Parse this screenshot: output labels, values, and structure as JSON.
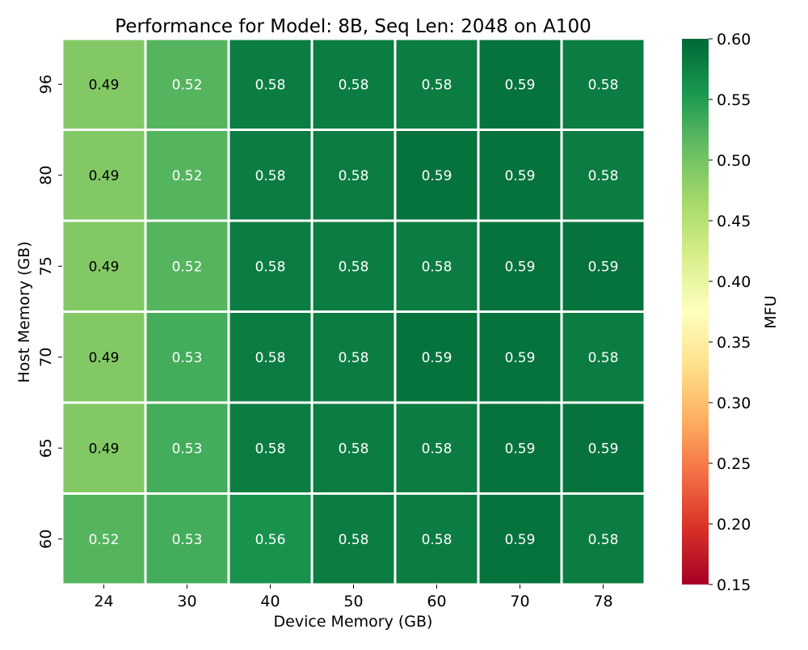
{
  "chart_data": {
    "type": "heatmap",
    "title": "Performance for Model: 8B, Seq Len: 2048 on A100",
    "xlabel": "Device Memory (GB)",
    "ylabel": "Host Memory (GB)",
    "x_categories": [
      "24",
      "30",
      "40",
      "50",
      "60",
      "70",
      "78"
    ],
    "y_categories": [
      "96",
      "80",
      "75",
      "70",
      "65",
      "60"
    ],
    "values": [
      [
        0.49,
        0.52,
        0.58,
        0.58,
        0.58,
        0.59,
        0.58
      ],
      [
        0.49,
        0.52,
        0.58,
        0.58,
        0.59,
        0.59,
        0.58
      ],
      [
        0.49,
        0.52,
        0.58,
        0.58,
        0.58,
        0.59,
        0.59
      ],
      [
        0.49,
        0.53,
        0.58,
        0.58,
        0.59,
        0.59,
        0.58
      ],
      [
        0.49,
        0.53,
        0.58,
        0.58,
        0.58,
        0.59,
        0.59
      ],
      [
        0.52,
        0.53,
        0.56,
        0.58,
        0.58,
        0.59,
        0.58
      ]
    ],
    "colorbar": {
      "label": "MFU",
      "range": [
        0.15,
        0.6
      ],
      "ticks": [
        "0.15",
        "0.20",
        "0.25",
        "0.30",
        "0.35",
        "0.40",
        "0.45",
        "0.50",
        "0.55",
        "0.60"
      ],
      "colormap": "RdYlGn",
      "colormap_stops": [
        "#a50026",
        "#d73027",
        "#f46d43",
        "#fdae61",
        "#fee08b",
        "#ffffbf",
        "#d9ef8b",
        "#a6d96a",
        "#66bd63",
        "#1a9850",
        "#006837"
      ]
    },
    "grid": false,
    "cell_border_color": "#ffffff",
    "annotation_colors": {
      "dark": "#000000",
      "light": "#ffffff"
    }
  }
}
